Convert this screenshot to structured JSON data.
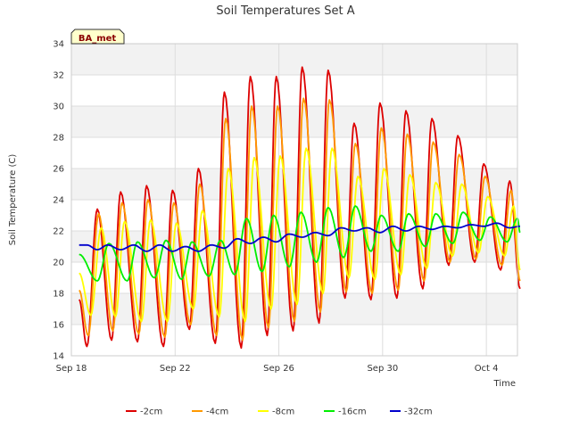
{
  "chart_data": {
    "type": "line",
    "title": "Soil Temperatures Set A",
    "xlabel": "Time",
    "ylabel": "Soil Temperature (C)",
    "badge": "BA_met",
    "x_unit": "days since Sep 18",
    "xlim": [
      0,
      17.2
    ],
    "ylim": [
      14,
      34
    ],
    "yticks": [
      14,
      16,
      18,
      20,
      22,
      24,
      26,
      28,
      30,
      32,
      34
    ],
    "xticks": [
      {
        "value": 0,
        "label": "Sep 18"
      },
      {
        "value": 4,
        "label": "Sep 22"
      },
      {
        "value": 8,
        "label": "Sep 26"
      },
      {
        "value": 12,
        "label": "Sep 30"
      },
      {
        "value": 16,
        "label": "Oct 4"
      }
    ],
    "grid": true,
    "legend_position": "bottom",
    "series": [
      {
        "name": "-2cm",
        "color": "#dd0000",
        "values": [
          [
            0.3,
            17.6
          ],
          [
            0.6,
            14.6
          ],
          [
            1.0,
            23.4
          ],
          [
            1.55,
            15.0
          ],
          [
            1.9,
            24.5
          ],
          [
            2.55,
            14.9
          ],
          [
            2.9,
            24.9
          ],
          [
            3.55,
            14.6
          ],
          [
            3.9,
            24.6
          ],
          [
            4.55,
            15.7
          ],
          [
            4.9,
            26.0
          ],
          [
            5.55,
            14.8
          ],
          [
            5.9,
            30.9
          ],
          [
            6.55,
            14.5
          ],
          [
            6.9,
            31.9
          ],
          [
            7.55,
            15.3
          ],
          [
            7.9,
            31.9
          ],
          [
            8.55,
            15.6
          ],
          [
            8.9,
            32.5
          ],
          [
            9.55,
            16.1
          ],
          [
            9.9,
            32.3
          ],
          [
            10.55,
            17.7
          ],
          [
            10.9,
            28.9
          ],
          [
            11.55,
            17.6
          ],
          [
            11.9,
            30.2
          ],
          [
            12.55,
            17.7
          ],
          [
            12.9,
            29.7
          ],
          [
            13.55,
            18.3
          ],
          [
            13.9,
            29.2
          ],
          [
            14.55,
            19.8
          ],
          [
            14.9,
            28.1
          ],
          [
            15.55,
            20.0
          ],
          [
            15.9,
            26.3
          ],
          [
            16.55,
            19.5
          ],
          [
            16.9,
            25.2
          ],
          [
            17.3,
            18.3
          ]
        ]
      },
      {
        "name": "-4cm",
        "color": "#ff9900",
        "values": [
          [
            0.3,
            18.2
          ],
          [
            0.65,
            15.3
          ],
          [
            1.05,
            23.1
          ],
          [
            1.6,
            15.6
          ],
          [
            1.95,
            23.8
          ],
          [
            2.6,
            15.4
          ],
          [
            2.95,
            24.0
          ],
          [
            3.6,
            15.2
          ],
          [
            3.95,
            23.8
          ],
          [
            4.6,
            16.0
          ],
          [
            4.95,
            25.0
          ],
          [
            5.6,
            15.3
          ],
          [
            5.95,
            29.2
          ],
          [
            6.6,
            15.0
          ],
          [
            6.95,
            30.0
          ],
          [
            7.6,
            15.8
          ],
          [
            7.95,
            30.0
          ],
          [
            8.6,
            16.2
          ],
          [
            8.95,
            30.5
          ],
          [
            9.6,
            16.8
          ],
          [
            9.95,
            30.4
          ],
          [
            10.6,
            18.1
          ],
          [
            10.95,
            27.6
          ],
          [
            11.6,
            18.0
          ],
          [
            11.95,
            28.6
          ],
          [
            12.6,
            18.2
          ],
          [
            12.95,
            28.2
          ],
          [
            13.6,
            18.8
          ],
          [
            13.95,
            27.7
          ],
          [
            14.6,
            20.0
          ],
          [
            14.95,
            26.9
          ],
          [
            15.6,
            20.2
          ],
          [
            15.95,
            25.5
          ],
          [
            16.6,
            19.8
          ],
          [
            16.95,
            24.6
          ],
          [
            17.3,
            18.8
          ]
        ]
      },
      {
        "name": "-8cm",
        "color": "#ffff00",
        "values": [
          [
            0.3,
            19.3
          ],
          [
            0.75,
            16.6
          ],
          [
            1.15,
            22.2
          ],
          [
            1.7,
            16.5
          ],
          [
            2.05,
            22.6
          ],
          [
            2.7,
            16.2
          ],
          [
            3.05,
            22.7
          ],
          [
            3.7,
            16.2
          ],
          [
            4.05,
            22.5
          ],
          [
            4.7,
            17.0
          ],
          [
            5.05,
            23.3
          ],
          [
            5.7,
            16.5
          ],
          [
            6.05,
            26.0
          ],
          [
            6.7,
            16.2
          ],
          [
            7.05,
            26.7
          ],
          [
            7.7,
            17.0
          ],
          [
            8.05,
            26.8
          ],
          [
            8.7,
            17.3
          ],
          [
            9.05,
            27.3
          ],
          [
            9.7,
            18.0
          ],
          [
            10.05,
            27.3
          ],
          [
            10.7,
            19.0
          ],
          [
            11.05,
            25.5
          ],
          [
            11.7,
            18.9
          ],
          [
            12.05,
            26.0
          ],
          [
            12.7,
            19.2
          ],
          [
            13.05,
            25.6
          ],
          [
            13.7,
            19.6
          ],
          [
            14.05,
            25.1
          ],
          [
            14.7,
            20.4
          ],
          [
            15.05,
            25.0
          ],
          [
            15.7,
            20.6
          ],
          [
            16.05,
            24.2
          ],
          [
            16.7,
            20.4
          ],
          [
            17.05,
            23.6
          ],
          [
            17.3,
            19.5
          ]
        ]
      },
      {
        "name": "-16cm",
        "color": "#00ee00",
        "values": [
          [
            0.3,
            20.5
          ],
          [
            1.0,
            18.8
          ],
          [
            1.45,
            21.2
          ],
          [
            2.15,
            18.8
          ],
          [
            2.55,
            21.3
          ],
          [
            3.2,
            19.0
          ],
          [
            3.65,
            21.4
          ],
          [
            4.25,
            18.9
          ],
          [
            4.65,
            21.3
          ],
          [
            5.3,
            19.1
          ],
          [
            5.75,
            21.4
          ],
          [
            6.3,
            19.2
          ],
          [
            6.75,
            22.8
          ],
          [
            7.35,
            19.4
          ],
          [
            7.8,
            23.0
          ],
          [
            8.4,
            19.7
          ],
          [
            8.85,
            23.2
          ],
          [
            9.45,
            20.0
          ],
          [
            9.9,
            23.5
          ],
          [
            10.5,
            20.3
          ],
          [
            10.95,
            23.6
          ],
          [
            11.55,
            20.7
          ],
          [
            11.95,
            23.0
          ],
          [
            12.6,
            20.7
          ],
          [
            13.0,
            23.1
          ],
          [
            13.65,
            21.0
          ],
          [
            14.05,
            23.1
          ],
          [
            14.7,
            21.2
          ],
          [
            15.1,
            23.2
          ],
          [
            15.75,
            21.4
          ],
          [
            16.15,
            22.9
          ],
          [
            16.8,
            21.3
          ],
          [
            17.2,
            22.8
          ],
          [
            17.3,
            21.9
          ]
        ]
      },
      {
        "name": "-32cm",
        "color": "#0000cc",
        "values": [
          [
            0.3,
            21.1
          ],
          [
            0.6,
            21.1
          ],
          [
            1.0,
            20.8
          ],
          [
            1.4,
            21.1
          ],
          [
            1.9,
            20.8
          ],
          [
            2.4,
            21.1
          ],
          [
            2.9,
            20.7
          ],
          [
            3.4,
            21.1
          ],
          [
            3.9,
            20.7
          ],
          [
            4.4,
            21.0
          ],
          [
            4.9,
            20.7
          ],
          [
            5.4,
            21.1
          ],
          [
            5.9,
            20.9
          ],
          [
            6.4,
            21.5
          ],
          [
            6.9,
            21.2
          ],
          [
            7.4,
            21.6
          ],
          [
            7.9,
            21.3
          ],
          [
            8.4,
            21.8
          ],
          [
            8.9,
            21.6
          ],
          [
            9.4,
            21.9
          ],
          [
            9.9,
            21.7
          ],
          [
            10.4,
            22.2
          ],
          [
            10.9,
            22.0
          ],
          [
            11.4,
            22.2
          ],
          [
            11.9,
            21.9
          ],
          [
            12.4,
            22.3
          ],
          [
            12.9,
            22.0
          ],
          [
            13.4,
            22.3
          ],
          [
            13.9,
            22.1
          ],
          [
            14.4,
            22.3
          ],
          [
            14.9,
            22.2
          ],
          [
            15.4,
            22.4
          ],
          [
            15.9,
            22.3
          ],
          [
            16.4,
            22.5
          ],
          [
            16.9,
            22.2
          ],
          [
            17.3,
            22.3
          ]
        ]
      }
    ]
  }
}
